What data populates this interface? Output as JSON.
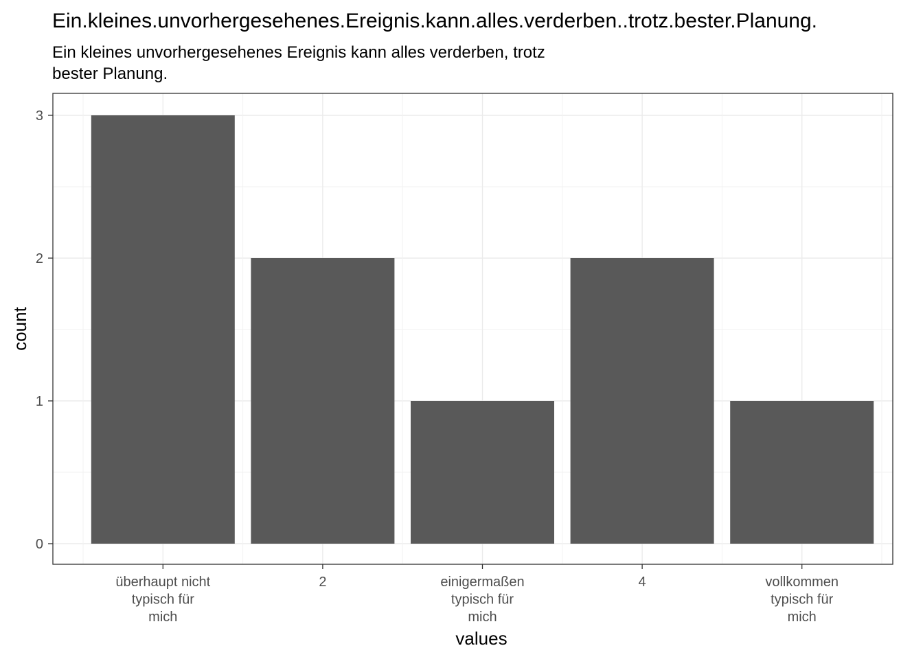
{
  "chart_data": {
    "type": "bar",
    "title": "Ein.kleines.unvorhergesehenes.Ereignis.kann.alles.verderben..trotz.bester.Planung.",
    "subtitle_lines": [
      "Ein kleines unvorhergesehenes Ereignis kann alles verderben, trotz",
      "bester Planung."
    ],
    "categories": [
      [
        "überhaupt nicht",
        "typisch für",
        "mich"
      ],
      [
        "2"
      ],
      [
        "einigermaßen",
        "typisch für",
        "mich"
      ],
      [
        "4"
      ],
      [
        "vollkommen",
        "typisch für",
        "mich"
      ]
    ],
    "values": [
      3,
      2,
      1,
      2,
      1
    ],
    "xlabel": "values",
    "ylabel": "count",
    "ylim": [
      0,
      3
    ],
    "yticks": [
      0,
      1,
      2,
      3
    ],
    "grid": true,
    "bar_color": "#595959"
  }
}
